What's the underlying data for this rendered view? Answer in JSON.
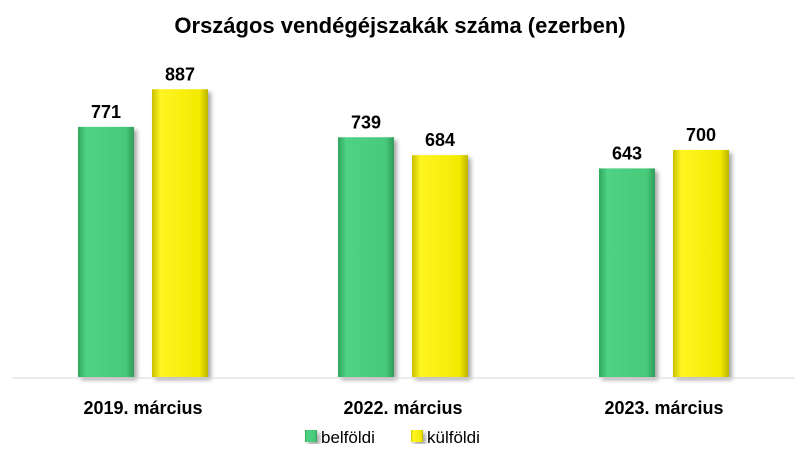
{
  "chart_data": {
    "type": "bar",
    "title": "Országos vendégéjszakák száma (ezerben)",
    "categories": [
      "2019. március",
      "2022. március",
      "2023. március"
    ],
    "series": [
      {
        "name": "belföldi",
        "values": [
          771,
          739,
          643
        ],
        "color": "#47C97A"
      },
      {
        "name": "külföldi",
        "values": [
          887,
          684,
          700
        ],
        "color": "#F2EA00"
      }
    ],
    "ylim": [
      0,
      1000
    ],
    "grid": false,
    "legend": "bottom",
    "data_labels": true
  }
}
